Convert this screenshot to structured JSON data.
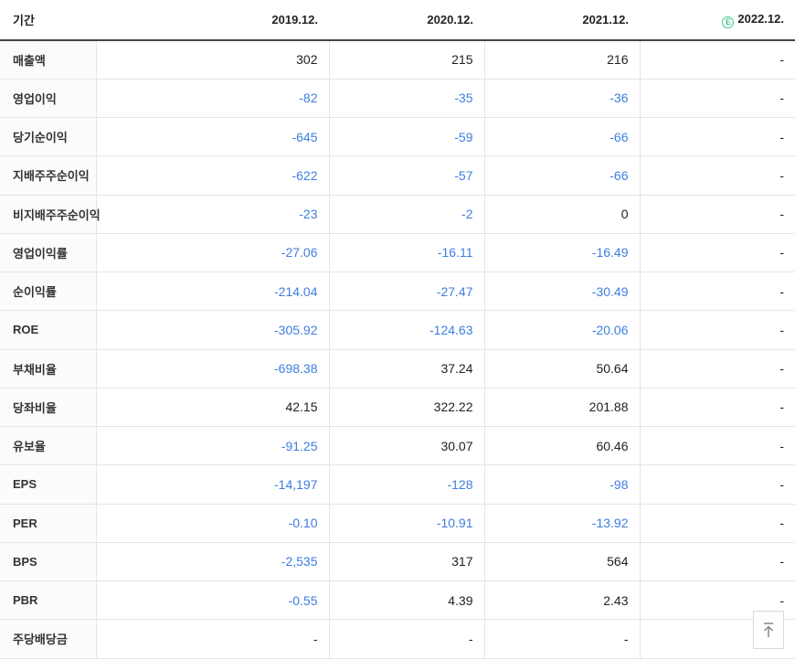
{
  "colors": {
    "negative_value": "#3f7de0",
    "text": "#222222",
    "grid_line": "#e5e5e5",
    "header_rule": "#444444",
    "label_column_bg": "#fbfbfb",
    "estimate_green": "#44c48c"
  },
  "table": {
    "header": {
      "period_label": "기간",
      "columns": [
        "2019.12.",
        "2020.12.",
        "2021.12.",
        "2022.12."
      ],
      "estimate_badge": "E"
    },
    "rows": [
      {
        "label": "매출액",
        "values": [
          "302",
          "215",
          "216",
          "-"
        ]
      },
      {
        "label": "영업이익",
        "values": [
          "-82",
          "-35",
          "-36",
          "-"
        ]
      },
      {
        "label": "당기순이익",
        "values": [
          "-645",
          "-59",
          "-66",
          "-"
        ]
      },
      {
        "label": "지배주주순이익",
        "values": [
          "-622",
          "-57",
          "-66",
          "-"
        ]
      },
      {
        "label": "비지배주주순이익",
        "values": [
          "-23",
          "-2",
          "0",
          "-"
        ]
      },
      {
        "label": "영업이익률",
        "values": [
          "-27.06",
          "-16.11",
          "-16.49",
          "-"
        ]
      },
      {
        "label": "순이익률",
        "values": [
          "-214.04",
          "-27.47",
          "-30.49",
          "-"
        ]
      },
      {
        "label": "ROE",
        "values": [
          "-305.92",
          "-124.63",
          "-20.06",
          "-"
        ]
      },
      {
        "label": "부채비율",
        "values": [
          "-698.38",
          "37.24",
          "50.64",
          "-"
        ]
      },
      {
        "label": "당좌비율",
        "values": [
          "42.15",
          "322.22",
          "201.88",
          "-"
        ]
      },
      {
        "label": "유보율",
        "values": [
          "-91.25",
          "30.07",
          "60.46",
          "-"
        ]
      },
      {
        "label": "EPS",
        "values": [
          "-14,197",
          "-128",
          "-98",
          "-"
        ]
      },
      {
        "label": "PER",
        "values": [
          "-0.10",
          "-10.91",
          "-13.92",
          "-"
        ]
      },
      {
        "label": "BPS",
        "values": [
          "-2,535",
          "317",
          "564",
          "-"
        ]
      },
      {
        "label": "PBR",
        "values": [
          "-0.55",
          "4.39",
          "2.43",
          "-"
        ]
      },
      {
        "label": "주당배당금",
        "values": [
          "-",
          "-",
          "-",
          "-"
        ]
      }
    ]
  },
  "scroll_top_button": {
    "icon": "arrow-to-top"
  }
}
